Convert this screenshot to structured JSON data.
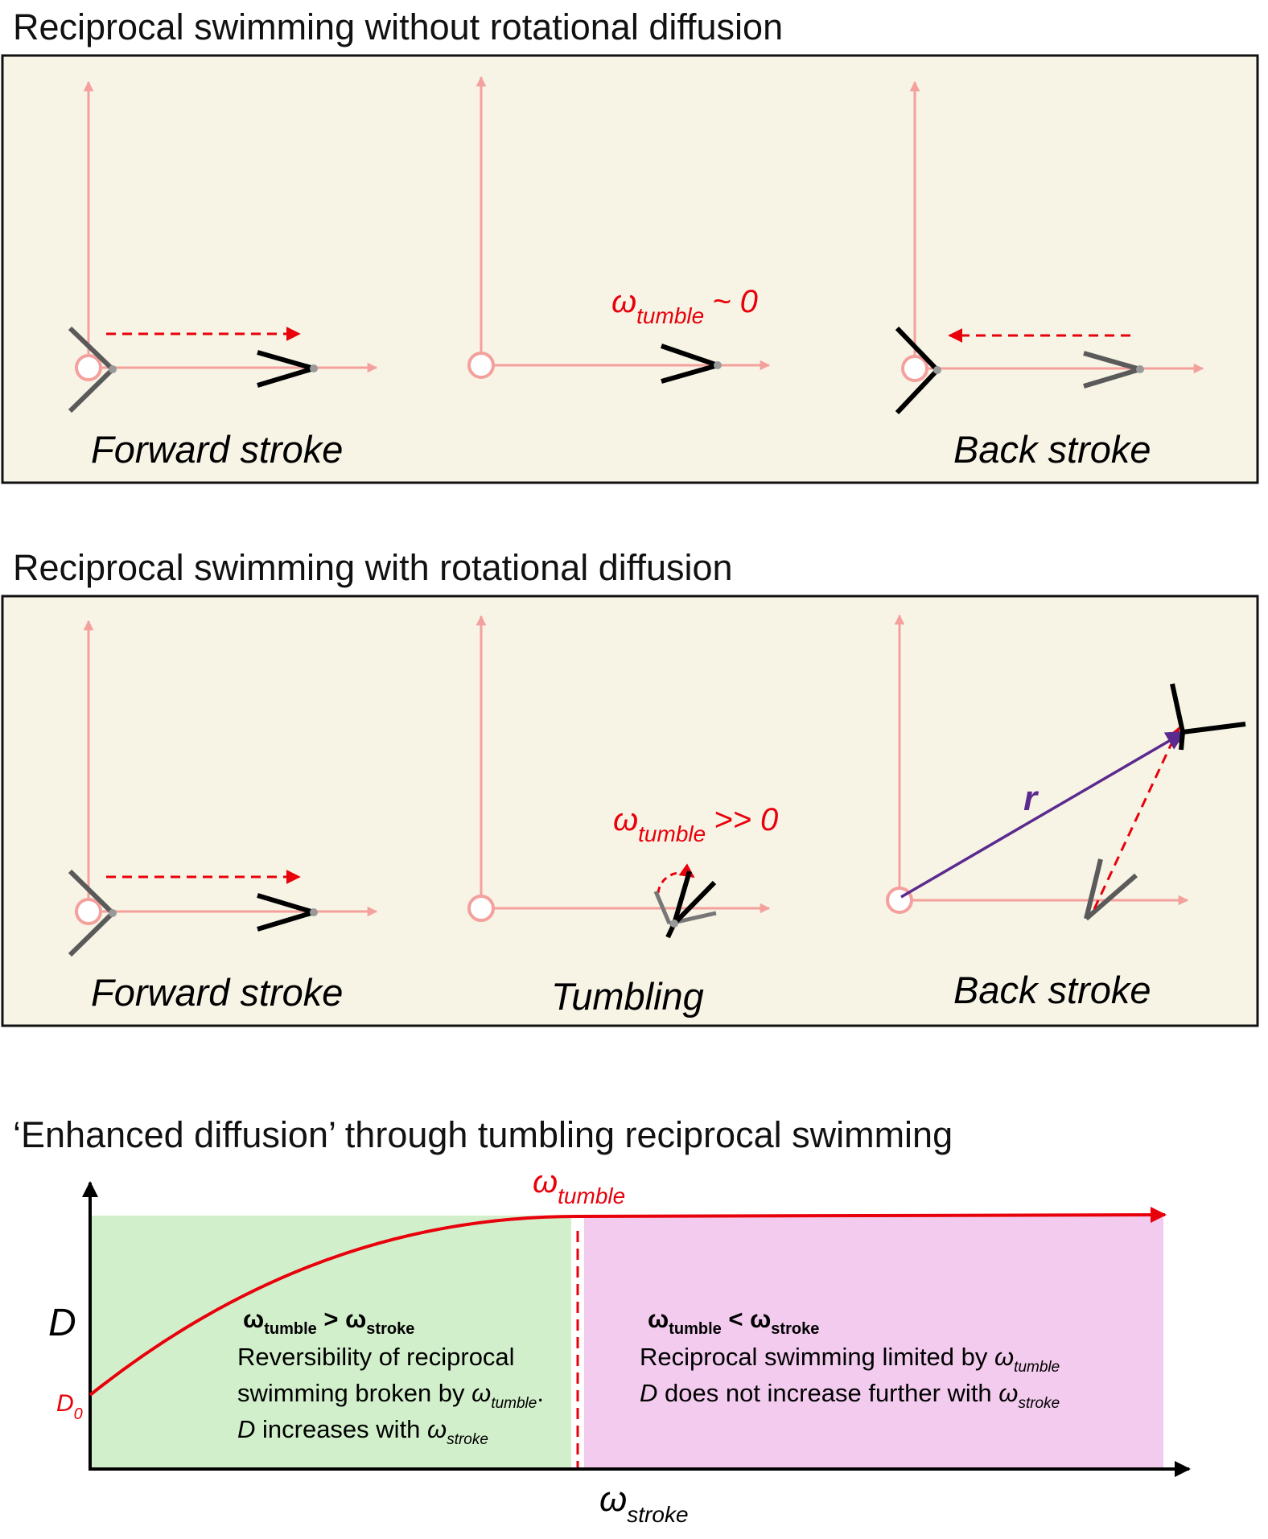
{
  "panel1": {
    "title": "Reciprocal swimming without rotational diffusion",
    "omega_symbol": "ω",
    "omega_sub": "tumble",
    "omega_rel": "~ 0",
    "label_left": "Forward stroke",
    "label_right": "Back stroke"
  },
  "panel2": {
    "title": "Reciprocal swimming with rotational diffusion",
    "omega_symbol": "ω",
    "omega_sub": "tumble",
    "omega_rel": ">> 0",
    "label_left": "Forward stroke",
    "label_mid": "Tumbling",
    "label_right": "Back stroke",
    "vector_label": "r"
  },
  "panel3": {
    "title": "‘Enhanced diffusion’ through tumbling reciprocal swimming",
    "curve_symbol": "ω",
    "curve_sub": "tumble",
    "y_axis_label": "D",
    "y0_label": "D",
    "y0_sub": "0",
    "x_axis_symbol": "ω",
    "x_axis_sub": "stroke",
    "left_region": {
      "heading_a": "ω",
      "heading_a_sub": "tumble",
      "heading_rel": " > ",
      "heading_b": "ω",
      "heading_b_sub": "stroke",
      "line1": "Reversibility of reciprocal",
      "line2_text": "swimming broken by ",
      "line2_sym": "ω",
      "line2_sub": "tumble",
      "line2_end": ".",
      "line3_D": "D",
      "line3_text": " increases with ",
      "line3_sym": "ω",
      "line3_sub": "stroke"
    },
    "right_region": {
      "heading_a": "ω",
      "heading_a_sub": "tumble",
      "heading_rel": " < ",
      "heading_b": "ω",
      "heading_b_sub": "stroke",
      "line1_text": "Reciprocal swimming limited by ",
      "line1_sym": "ω",
      "line1_sub": "tumble",
      "line2_D": "D",
      "line2_text": " does not increase further with ",
      "line2_sym": "ω",
      "line2_sub": "stroke"
    }
  },
  "colors": {
    "panel_bg": "#f7f4e6",
    "axis_pink": "#f4a09c",
    "red": "#e8000b",
    "purple": "#5b2a8e",
    "green_region": "#d2efcc",
    "pink_region": "#f2cbee",
    "dark_gray": "#555555"
  }
}
